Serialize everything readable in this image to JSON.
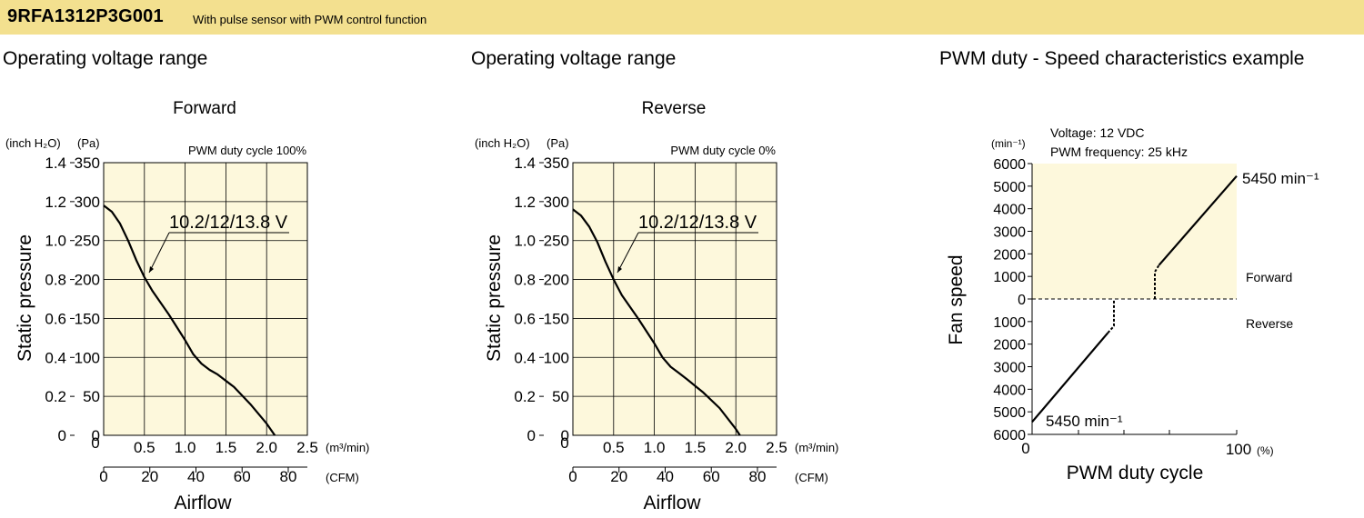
{
  "header": {
    "model": "9RFA1312P3G001",
    "description": "With pulse sensor with PWM control function"
  },
  "colors": {
    "header_bg": "#f3e08f",
    "plot_bg": "#fdf8dc",
    "line": "#000000"
  },
  "sections": [
    {
      "title": "Operating voltage range"
    },
    {
      "title": "Operating voltage range"
    },
    {
      "title": "PWM duty - Speed characteristics example"
    }
  ],
  "chart_data": [
    {
      "type": "line",
      "title": "Forward",
      "annotation": "PWM duty cycle 100%",
      "curve_label": "10.2/12/13.8 V",
      "ylabel": "Static pressure",
      "xlabel": "Airflow",
      "y_unit_inch": "(inch H₂O)",
      "y_unit_pa": "(Pa)",
      "x_unit_m3": "(m³/min)",
      "x_unit_cfm": "(CFM)",
      "x_ticks_m3": [
        "0",
        "0.5",
        "1.0",
        "1.5",
        "2.0",
        "2.5"
      ],
      "x_ticks_cfm": [
        "0",
        "20",
        "40",
        "60",
        "80"
      ],
      "y_ticks_pa": [
        "0",
        "50",
        "100",
        "150",
        "200",
        "250",
        "300",
        "350"
      ],
      "y_ticks_inch": [
        "0",
        "0.2",
        "0.4",
        "0.6",
        "0.8",
        "1.0",
        "1.2",
        "1.4"
      ],
      "xlim": [
        0,
        2.5
      ],
      "ylim": [
        0,
        350
      ],
      "grid": true,
      "series": [
        {
          "x": [
            0,
            0.1,
            0.2,
            0.3,
            0.4,
            0.5,
            0.6,
            0.8,
            1.0,
            1.1,
            1.2,
            1.3,
            1.4,
            1.6,
            1.8,
            2.0,
            2.1
          ],
          "y": [
            295,
            287,
            272,
            250,
            225,
            203,
            185,
            155,
            122,
            104,
            92,
            84,
            78,
            62,
            40,
            15,
            0
          ]
        }
      ]
    },
    {
      "type": "line",
      "title": "Reverse",
      "annotation": "PWM duty cycle 0%",
      "curve_label": "10.2/12/13.8 V",
      "ylabel": "Static pressure",
      "xlabel": "Airflow",
      "y_unit_inch": "(inch H₂O)",
      "y_unit_pa": "(Pa)",
      "x_unit_m3": "(m³/min)",
      "x_unit_cfm": "(CFM)",
      "x_ticks_m3": [
        "0",
        "0.5",
        "1.0",
        "1.5",
        "2.0",
        "2.5"
      ],
      "x_ticks_cfm": [
        "0",
        "20",
        "40",
        "60",
        "80"
      ],
      "y_ticks_pa": [
        "0",
        "50",
        "100",
        "150",
        "200",
        "250",
        "300",
        "350"
      ],
      "y_ticks_inch": [
        "0",
        "0.2",
        "0.4",
        "0.6",
        "0.8",
        "1.0",
        "1.2",
        "1.4"
      ],
      "xlim": [
        0,
        2.5
      ],
      "ylim": [
        0,
        350
      ],
      "grid": true,
      "series": [
        {
          "x": [
            0,
            0.1,
            0.2,
            0.3,
            0.4,
            0.5,
            0.6,
            0.8,
            1.0,
            1.1,
            1.2,
            1.3,
            1.4,
            1.6,
            1.8,
            2.0,
            2.05
          ],
          "y": [
            290,
            282,
            268,
            248,
            223,
            200,
            180,
            150,
            118,
            100,
            88,
            80,
            72,
            55,
            35,
            8,
            0
          ]
        }
      ]
    },
    {
      "type": "line",
      "annotation_1": "Voltage: 12 VDC",
      "annotation_2": "PWM frequency: 25 kHz",
      "ylabel": "Fan speed",
      "xlabel": "PWM duty cycle",
      "y_unit": "(min⁻¹)",
      "x_unit": "(%)",
      "x_ticks": [
        "0",
        "100"
      ],
      "y_ticks_forward": [
        "6000",
        "5000",
        "4000",
        "3000",
        "2000",
        "1000",
        "0"
      ],
      "y_ticks_reverse": [
        "1000",
        "2000",
        "3000",
        "4000",
        "5000",
        "6000"
      ],
      "region_forward": "Forward",
      "region_reverse": "Reverse",
      "label_top": "5450 min⁻¹",
      "label_bottom": "5450 min⁻¹",
      "xlim": [
        0,
        100
      ],
      "ylim": [
        -6000,
        6000
      ],
      "grid": false,
      "series": [
        {
          "name": "reverse",
          "x": [
            0,
            37
          ],
          "y": [
            -5450,
            -1500
          ],
          "style": "solid"
        },
        {
          "name": "reverse-transition",
          "x": [
            37,
            40,
            40
          ],
          "y": [
            -1500,
            -1200,
            0
          ],
          "style": "dashed"
        },
        {
          "name": "zero",
          "x": [
            0,
            100
          ],
          "y": [
            0,
            0
          ],
          "style": "dashed"
        },
        {
          "name": "forward-transition",
          "x": [
            60,
            60,
            62
          ],
          "y": [
            0,
            1200,
            1500
          ],
          "style": "dashed"
        },
        {
          "name": "forward",
          "x": [
            62,
            100
          ],
          "y": [
            1500,
            5450
          ],
          "style": "solid"
        }
      ]
    }
  ]
}
